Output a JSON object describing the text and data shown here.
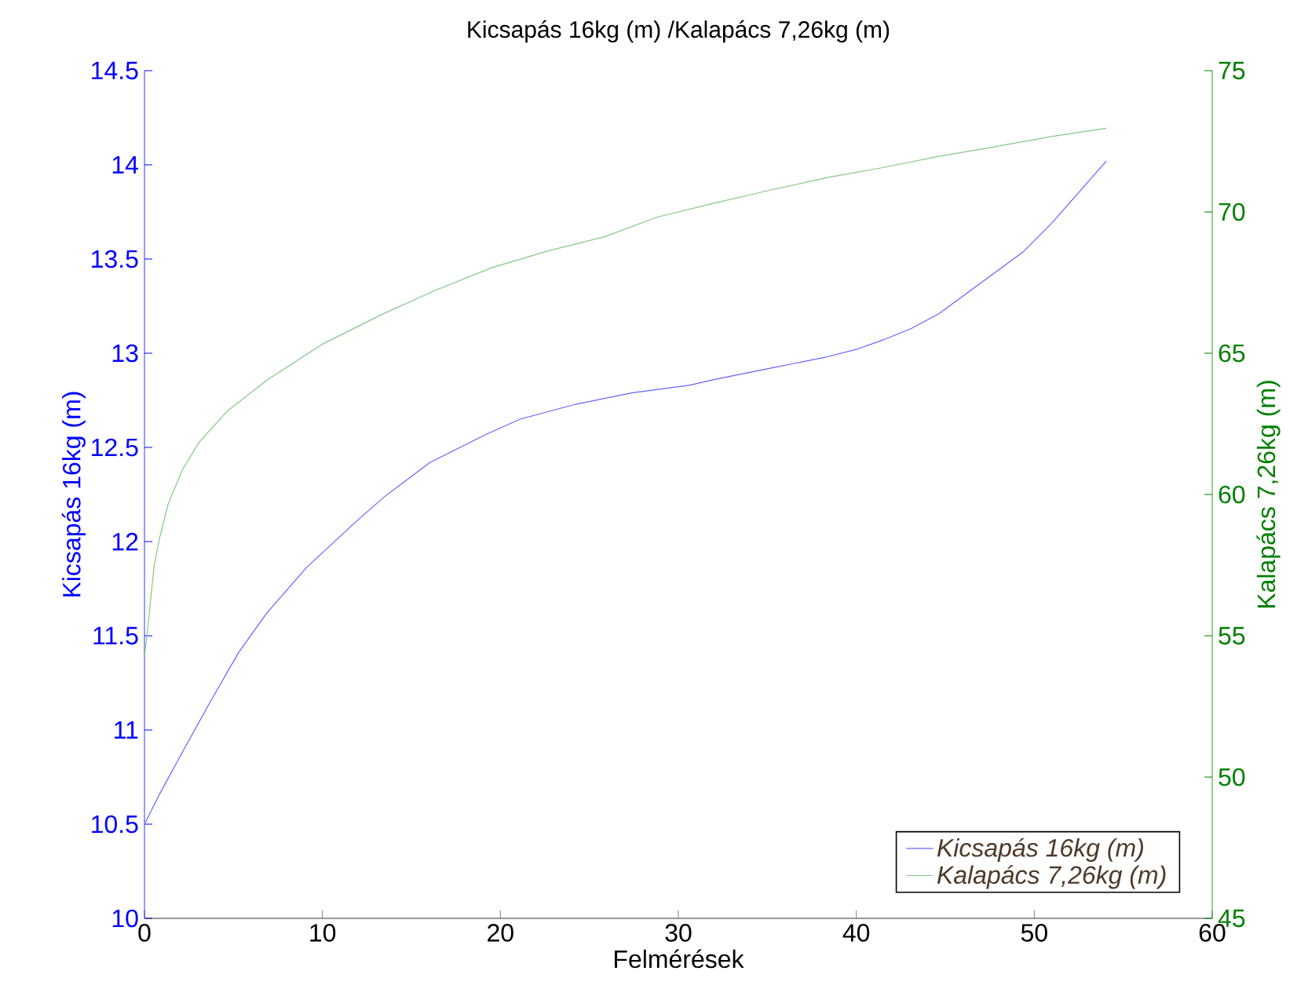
{
  "chart_data": {
    "type": "line",
    "title": "Kicsapás 16kg (m) /Kalapács 7,26kg (m)",
    "xlabel": "Felmérések",
    "ylabel": "Kicsapás 16kg (m)",
    "y2label": "Kalapács 7,26kg (m)",
    "xlim": [
      0,
      60
    ],
    "xticks": [
      0,
      10,
      20,
      30,
      40,
      50,
      60
    ],
    "ylim": [
      10,
      14.5
    ],
    "yticks": [
      10,
      10.5,
      11,
      11.5,
      12,
      12.5,
      13,
      13.5,
      14,
      14.5
    ],
    "y2lim": [
      45,
      75
    ],
    "y2ticks": [
      45,
      50,
      55,
      60,
      65,
      70,
      75
    ],
    "legend": "bottom right",
    "grid": false,
    "marker": "none",
    "line_style": "solid",
    "series": [
      {
        "name": "Kicsapás 16kg (m)",
        "color": "#6464ff",
        "x": [
          0,
          0.85,
          2.12,
          3.7,
          5.28,
          6.87,
          9.08,
          11.93,
          13.51,
          16.04,
          19.21,
          21.11,
          24.27,
          27.44,
          30.6,
          32,
          35.16,
          38.32,
          40,
          41.49,
          43.07,
          44.65,
          46.23,
          47.82,
          49.4,
          50.98,
          52.56,
          54.05
        ],
        "values": [
          10.5,
          10.66,
          10.88,
          11.15,
          11.41,
          11.62,
          11.86,
          12.11,
          12.24,
          12.42,
          12.57,
          12.65,
          12.73,
          12.79,
          12.83,
          12.86,
          12.92,
          12.98,
          13.02,
          13.07,
          13.13,
          13.21,
          13.32,
          13.43,
          13.54,
          13.69,
          13.86,
          14.02
        ]
      },
      {
        "name": "Kalapács 7,26kg (m)",
        "color": "#84c884",
        "axis": "y2",
        "x": [
          0,
          0.22,
          0.54,
          0.85,
          1.33,
          2.12,
          3.07,
          4.65,
          6.87,
          10.03,
          13.2,
          16.36,
          19.53,
          22.69,
          25.85,
          28.83,
          32,
          35.16,
          38.32,
          41.49,
          44.65,
          47.82,
          50.98,
          54.05
        ],
        "values": [
          54.28,
          55.48,
          57.47,
          58.46,
          59.66,
          60.86,
          61.85,
          62.95,
          64.04,
          65.33,
          66.33,
          67.23,
          68.03,
          68.62,
          69.12,
          69.82,
          70.31,
          70.77,
          71.21,
          71.57,
          71.97,
          72.31,
          72.67,
          72.96
        ]
      }
    ]
  }
}
